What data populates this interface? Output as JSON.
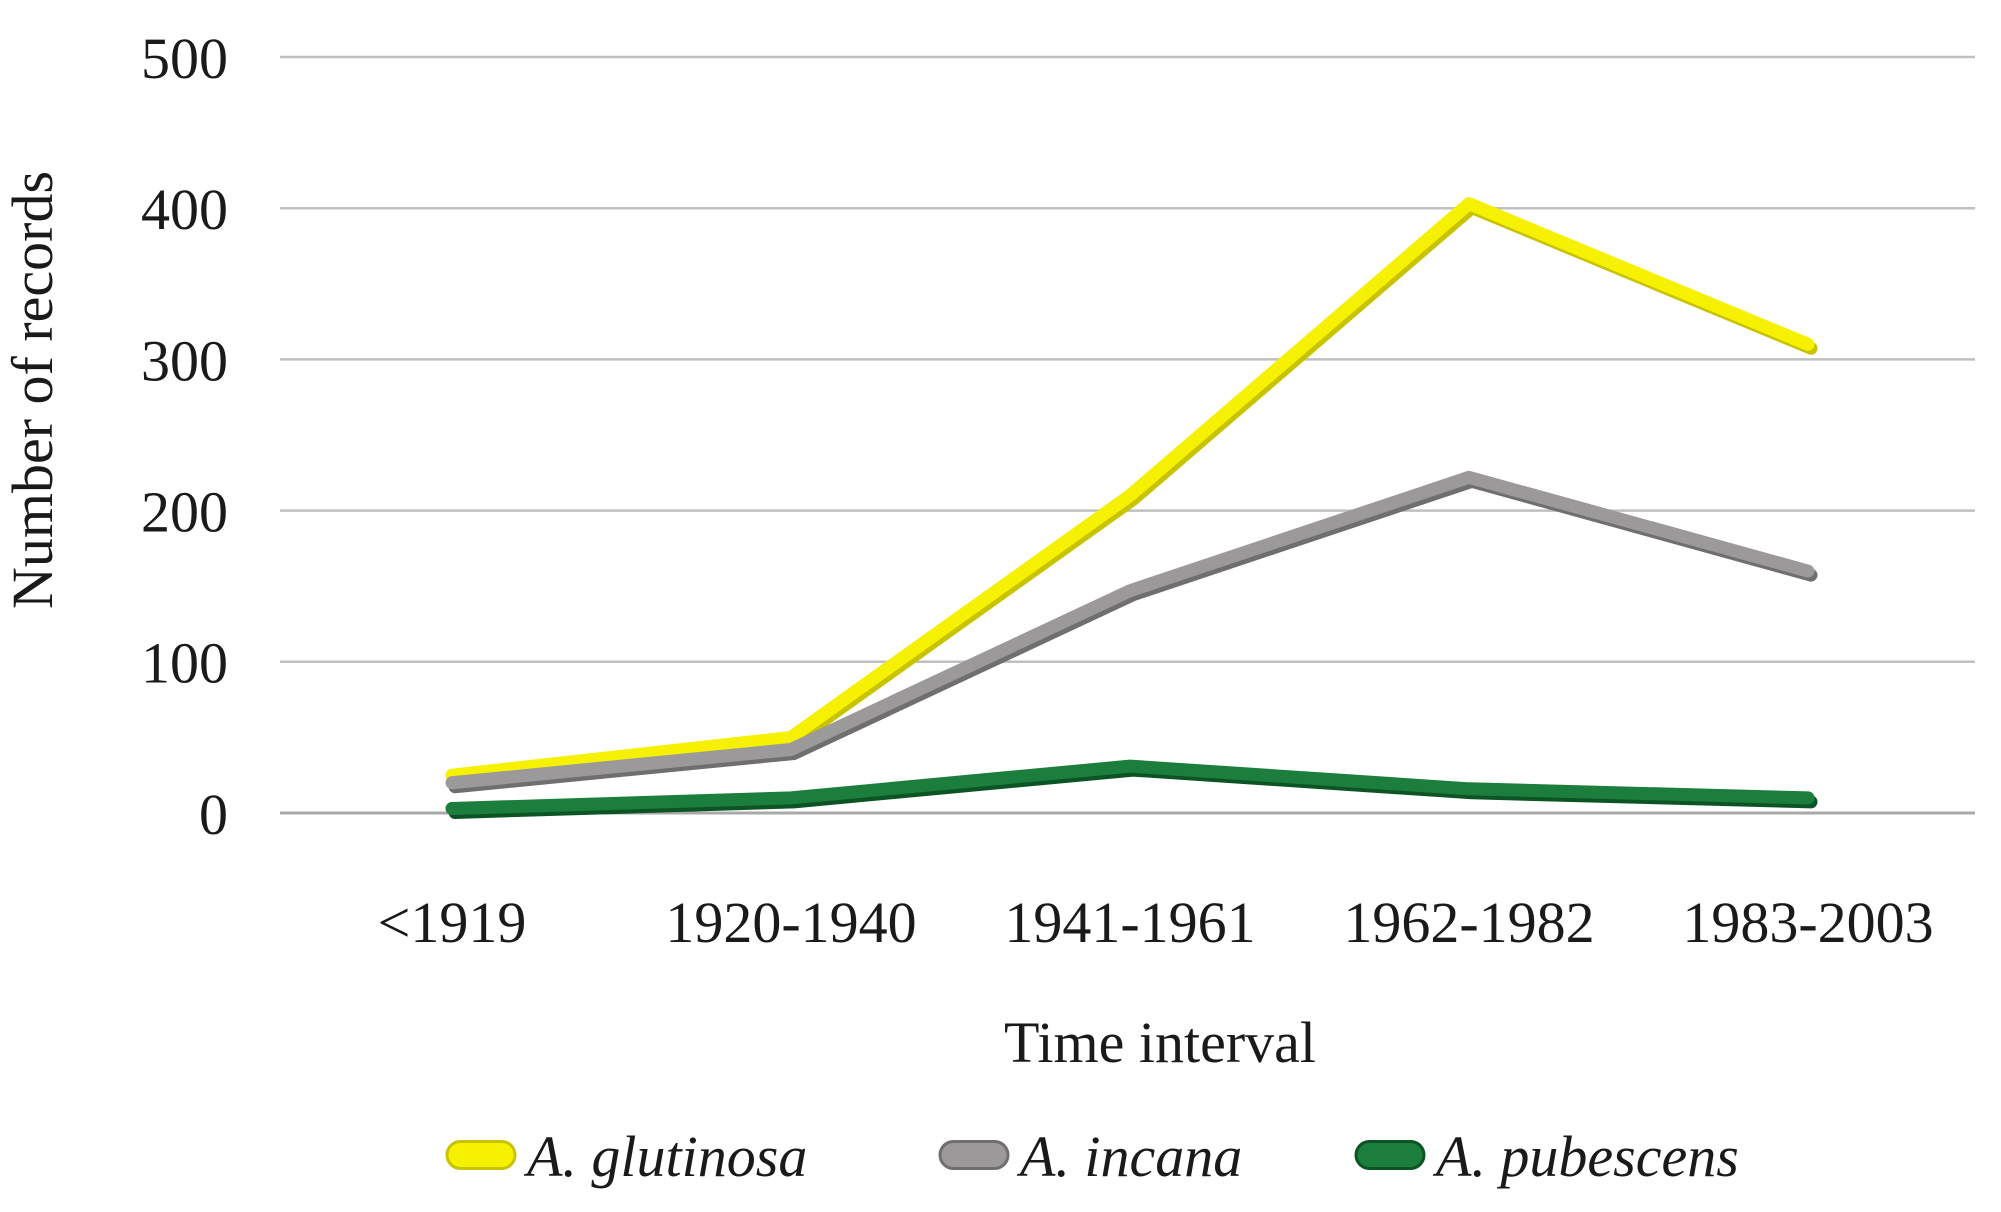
{
  "figure": {
    "background": "#FFFFFF"
  },
  "chart_data": {
    "type": "line",
    "title": "",
    "xlabel": "Time interval",
    "ylabel": "Number of records",
    "categories": [
      "<1919",
      "1920-1940",
      "1941-1961",
      "1962-1982",
      "1983-2003"
    ],
    "series": [
      {
        "name": "A. glutinosa",
        "values": [
          25,
          50,
          210,
          403,
          310
        ],
        "color": "#F5F101",
        "edge_color": "#C8C300"
      },
      {
        "name": "A. incana",
        "values": [
          20,
          42,
          147,
          222,
          160
        ],
        "color": "#9B9999",
        "edge_color": "#6F6F6F"
      },
      {
        "name": "A. pubescens",
        "values": [
          3,
          10,
          31,
          16,
          10
        ],
        "color": "#1B7E3C",
        "edge_color": "#0D5424"
      }
    ],
    "ylim": [
      0,
      500
    ],
    "yticks": [
      0,
      100,
      200,
      300,
      400,
      500
    ],
    "grid": "horizontal-only",
    "legend_position": "bottom",
    "colors": {
      "gridline": "#C0C0C0",
      "baseline": "#A9A9A9",
      "axis_text": "#1A1A1A",
      "background": "#FFFFFF"
    }
  }
}
